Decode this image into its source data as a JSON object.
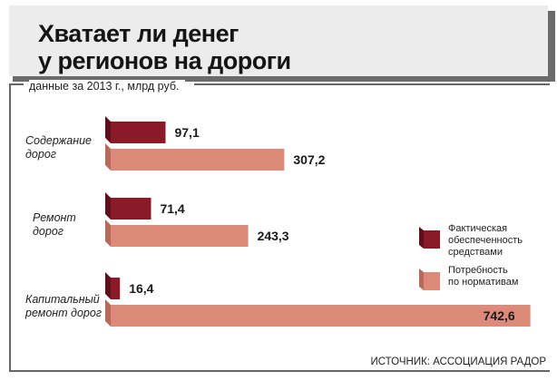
{
  "title": {
    "line1": "Хватает ли денег",
    "line2": "у регионов на дороги"
  },
  "subtitle": "данные за 2013 г., млрд руб.",
  "source": "ИСТОЧНИК: АССОЦИАЦИЯ РАДОР",
  "colors": {
    "actual": "#8b1a28",
    "need": "#de8a7a",
    "actual_dark": "#5e0f19",
    "need_dark": "#b56a5a"
  },
  "chart_data": {
    "type": "bar",
    "orientation": "horizontal",
    "categories": [
      [
        "Содержание",
        "дорог"
      ],
      [
        "Ремонт",
        "дорог"
      ],
      [
        "Капитальный",
        "ремонт дорог"
      ]
    ],
    "series": [
      {
        "name": [
          "Фактическая",
          "обеспеченность",
          "средствами"
        ],
        "values": [
          97.1,
          71.4,
          16.4
        ],
        "labels": [
          "97,1",
          "71,4",
          "16,4"
        ]
      },
      {
        "name": [
          "Потребность",
          "по нормативам"
        ],
        "values": [
          307.2,
          243.3,
          742.6
        ],
        "labels": [
          "307,2",
          "243,3",
          "742,6"
        ]
      }
    ],
    "legend": "right",
    "grid": false
  }
}
